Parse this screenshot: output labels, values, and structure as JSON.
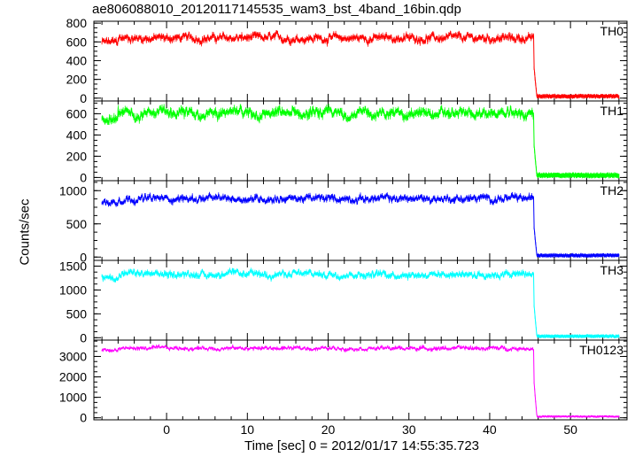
{
  "chart_data": {
    "type": "line",
    "title": "ae806088010_20120117145535_wam3_bst_4band_16bin.qdp",
    "xlabel": "Time [sec] 0 = 2012/01/17 14:55:35.723",
    "ylabel": "Counts/sec",
    "xlim": [
      -9,
      57
    ],
    "xticks": [
      0,
      10,
      20,
      30,
      40,
      50
    ],
    "xtick_labels": [
      "0",
      "10",
      "20",
      "30",
      "40",
      "50"
    ],
    "drop_time": 45.5,
    "end_time": 56,
    "start_time": -8,
    "panels": [
      {
        "name": "TH0",
        "color": "#ff0000",
        "level": 640,
        "noise": 55,
        "tail": 20,
        "ylim": [
          -30,
          820
        ],
        "yticks": [
          0,
          200,
          400,
          600,
          800
        ]
      },
      {
        "name": "TH1",
        "color": "#00ff00",
        "level": 600,
        "noise": 60,
        "tail": 20,
        "ylim": [
          -30,
          720
        ],
        "yticks": [
          0,
          200,
          400,
          600
        ]
      },
      {
        "name": "TH2",
        "color": "#0000ff",
        "level": 880,
        "noise": 70,
        "tail": 25,
        "ylim": [
          -50,
          1150
        ],
        "yticks": [
          0,
          500,
          1000
        ]
      },
      {
        "name": "TH3",
        "color": "#00ffff",
        "level": 1330,
        "noise": 90,
        "tail": 30,
        "ylim": [
          -50,
          1620
        ],
        "yticks": [
          0,
          500,
          1000,
          1500
        ]
      },
      {
        "name": "TH0123",
        "color": "#ff00ff",
        "level": 3400,
        "noise": 120,
        "tail": 60,
        "ylim": [
          -100,
          3800
        ],
        "yticks": [
          0,
          1000,
          2000,
          3000
        ]
      }
    ]
  }
}
